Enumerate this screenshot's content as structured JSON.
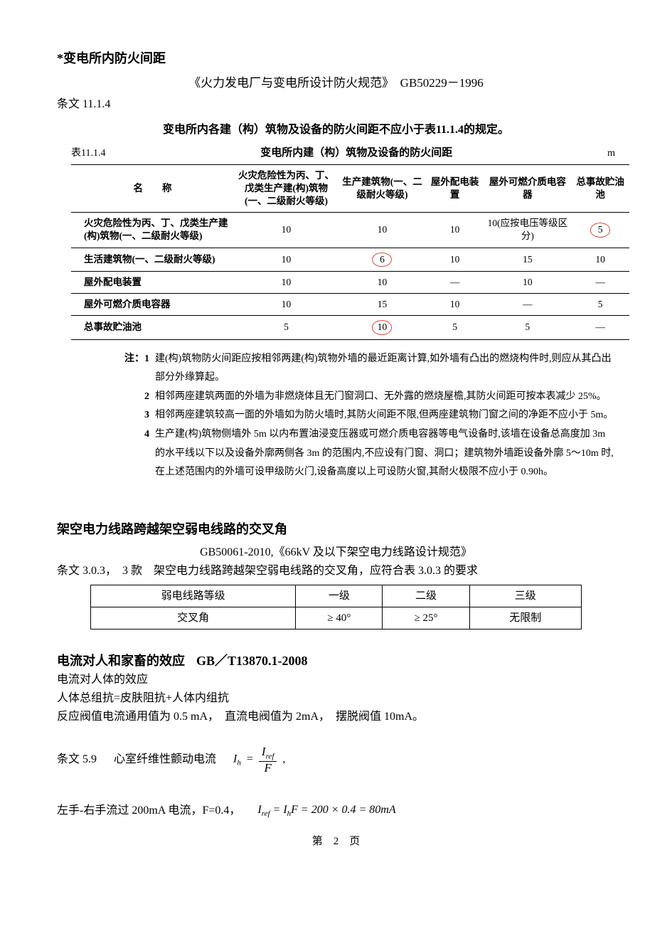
{
  "sec1": {
    "title": "*变电所内防火间距",
    "standard": "《火力发电厂与变电所设计防火规范》　GB50229－1996",
    "clause": "条文 11.1.4",
    "intro": "变电所内各建（构）筑物及设备的防火间距不应小于表11.1.4的规定。",
    "table_label": "表11.1.4",
    "table_caption": "变电所内建（构）筑物及设备的防火间距",
    "table_unit": "m",
    "cols": [
      "名　　称",
      "火灾危险性为丙、丁、戊类生产建(构)筑物(一、二级耐火等级)",
      "生产建筑物(一、二级耐火等级)",
      "屋外配电装置",
      "屋外可燃介质电容器",
      "总事故贮油池"
    ],
    "rows": [
      {
        "label": "火灾危险性为丙、丁、戊类生产建(构)筑物(一、二级耐火等级)",
        "c": [
          "10",
          "10",
          "10",
          "10(应按电压等级区分)",
          "5"
        ],
        "circle": [
          4
        ]
      },
      {
        "label": "生活建筑物(一、二级耐火等级)",
        "c": [
          "10",
          "6",
          "10",
          "15",
          "10"
        ],
        "circle": [
          1
        ]
      },
      {
        "label": "屋外配电装置",
        "c": [
          "10",
          "10",
          "—",
          "10",
          "—"
        ],
        "circle": []
      },
      {
        "label": "屋外可燃介质电容器",
        "c": [
          "10",
          "15",
          "10",
          "—",
          "5"
        ],
        "circle": []
      },
      {
        "label": "总事故贮油池",
        "c": [
          "5",
          "10",
          "5",
          "5",
          "—"
        ],
        "circle": [
          1
        ]
      }
    ],
    "note_lead": "注：1",
    "notes": [
      "建(构)筑物防火间距应按相邻两建(构)筑物外墙的最近距离计算,如外墙有凸出的燃烧构件时,则应从其凸出部分外缘算起。",
      "相邻两座建筑两面的外墙为非燃烧体且无门窗洞口、无外露的燃烧屋檐,其防火间距可按本表减少 25%。",
      "相邻两座建筑较高一面的外墙如为防火墙时,其防火间距不限,但两座建筑物门窗之间的净距不应小于 5m。",
      "生产建(构)筑物侧墙外 5m 以内布置油浸变压器或可燃介质电容器等电气设备时,该墙在设备总高度加 3m 的水平线以下以及设备外廓两侧各 3m 的范围内,不应设有门窗、洞口；建筑物外墙距设备外廓 5～10m 时,在上述范围内的外墙可设甲级防火门,设备高度以上可设防火窗,其耐火极限不应小于 0.90h。"
    ]
  },
  "sec2": {
    "title": "架空电力线路跨越架空弱电线路的交叉角",
    "standard": "GB50061-2010,《66kV 及以下架空电力线路设计规范》",
    "clause": "条文 3.0.3，　3 款　架空电力线路跨越架空弱电线路的交叉角，应符合表 3.0.3 的要求",
    "header": [
      "弱电线路等级",
      "一级",
      "二级",
      "三级"
    ],
    "row_label": "交叉角",
    "row": [
      "≥ 40°",
      "≥ 25°",
      "无限制"
    ]
  },
  "sec3": {
    "title_a": "电流对人和家畜的效应",
    "title_b": "GB／T13870.1-2008",
    "line1": "电流对人体的效应",
    "line2": "人体总组抗=皮肤阻抗+人体内组抗",
    "line3": "反应阀值电流通用值为 0.5 mA，　直流电阀值为 2mA，　摆脱阀值 10mA。",
    "clause59_label": "条文 5.9",
    "clause59_text": "心室纤维性颤动电流",
    "eq1_lhs": "I",
    "eq1_lhs_sub": "h",
    "eq1_num": "I",
    "eq1_num_sub": "ref",
    "eq1_den": "F",
    "eq2_intro": "左手-右手流过 200mA 电流，F=0.4，",
    "eq2": "I",
    "eq2_sub": "ref",
    "eq2_rest": " = I",
    "eq2_rest_sub": "h",
    "eq2_tail": "F = 200 × 0.4 = 80mA"
  },
  "footer": "第　2　页"
}
